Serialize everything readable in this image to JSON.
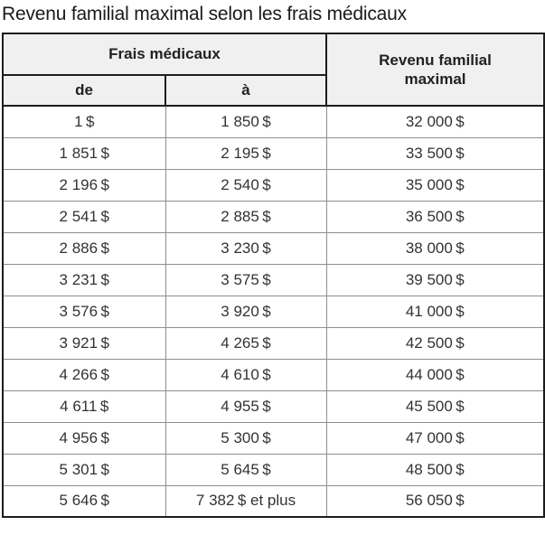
{
  "title": "Revenu familial maximal selon les frais médicaux",
  "table": {
    "header": {
      "frais_medicaux": "Frais médicaux",
      "de": "de",
      "a": "à",
      "revenu_familial_maximal": "Revenu familial maximal"
    },
    "rows": [
      {
        "de": "1 $",
        "a": "1 850 $",
        "revenu": "32 000 $"
      },
      {
        "de": "1 851 $",
        "a": "2 195 $",
        "revenu": "33 500 $"
      },
      {
        "de": "2 196 $",
        "a": "2 540 $",
        "revenu": "35 000 $"
      },
      {
        "de": "2 541 $",
        "a": "2 885 $",
        "revenu": "36 500 $"
      },
      {
        "de": "2 886 $",
        "a": "3 230 $",
        "revenu": "38 000 $"
      },
      {
        "de": "3 231 $",
        "a": "3 575 $",
        "revenu": "39 500 $"
      },
      {
        "de": "3 576 $",
        "a": "3 920 $",
        "revenu": "41 000 $"
      },
      {
        "de": "3 921 $",
        "a": "4 265 $",
        "revenu": "42 500 $"
      },
      {
        "de": "4 266 $",
        "a": "4 610 $",
        "revenu": "44 000 $"
      },
      {
        "de": "4 611 $",
        "a": "4 955 $",
        "revenu": "45 500 $"
      },
      {
        "de": "4 956 $",
        "a": "5 300 $",
        "revenu": "47 000 $"
      },
      {
        "de": "5 301 $",
        "a": "5 645 $",
        "revenu": "48 500 $"
      },
      {
        "de": "5 646 $",
        "a": "7 382 $ et plus",
        "revenu": "56 050 $"
      }
    ]
  },
  "chart_data": {
    "type": "table",
    "title": "Revenu familial maximal selon les frais médicaux",
    "columns": [
      "Frais médicaux — de ($)",
      "Frais médicaux — à ($)",
      "Revenu familial maximal ($)"
    ],
    "rows": [
      [
        1,
        1850,
        32000
      ],
      [
        1851,
        2195,
        33500
      ],
      [
        2196,
        2540,
        35000
      ],
      [
        2541,
        2885,
        36500
      ],
      [
        2886,
        3230,
        38000
      ],
      [
        3231,
        3575,
        39500
      ],
      [
        3576,
        3920,
        41000
      ],
      [
        3921,
        4265,
        42500
      ],
      [
        4266,
        4610,
        44000
      ],
      [
        4611,
        4955,
        45500
      ],
      [
        4956,
        5300,
        47000
      ],
      [
        5301,
        5645,
        48500
      ],
      [
        5646,
        7382,
        56050
      ]
    ],
    "notes": "Last row upper bound reads « 7 382 $ et plus » (7 382 $ and more)"
  },
  "colors": {
    "header_background": "#f0f0f0",
    "dark_border": "#1c1c1c",
    "light_border": "#8e8e8e",
    "title_text": "#1a1a1a",
    "cell_text": "#333333"
  }
}
